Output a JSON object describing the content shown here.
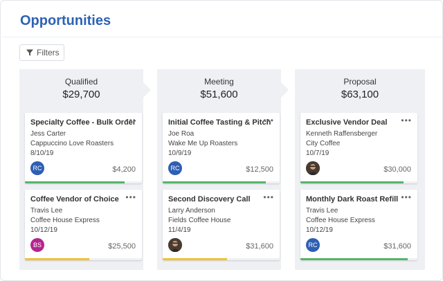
{
  "header": {
    "title": "Opportunities"
  },
  "toolbar": {
    "filters_label": "Filters"
  },
  "colors": {
    "accent": "#2d62b5",
    "green": "#55b46a",
    "yellow": "#f2c12e"
  },
  "columns": [
    {
      "name": "Qualified",
      "amount": "$29,700",
      "cards": [
        {
          "title": "Specialty Coffee - Bulk Order",
          "contact": "Jess Carter",
          "company": "Cappuccino Love Roasters",
          "date": "8/10/19",
          "value": "$4,200",
          "avatar_initials": "RC",
          "avatar_color": "#2f5fb3",
          "avatar_type": "initials",
          "progress": 0.85,
          "progress_color": "#55b46a"
        },
        {
          "title": "Coffee Vendor of Choice",
          "contact": "Travis Lee",
          "company": "Coffee House Express",
          "date": "10/12/19",
          "value": "$25,500",
          "avatar_initials": "BS",
          "avatar_color": "#b3268e",
          "avatar_type": "initials",
          "progress": 0.55,
          "progress_color": "#f2c12e"
        }
      ]
    },
    {
      "name": "Meeting",
      "amount": "$51,600",
      "cards": [
        {
          "title": "Initial Coffee Tasting & Pitch",
          "contact": "Joe Roa",
          "company": "Wake Me Up Roasters",
          "date": "10/9/19",
          "value": "$12,500",
          "avatar_initials": "RC",
          "avatar_color": "#2f5fb3",
          "avatar_type": "initials",
          "progress": 0.88,
          "progress_color": "#55b46a"
        },
        {
          "title": "Second Discovery Call",
          "contact": "Larry Anderson",
          "company": "Fields Coffee House",
          "date": "11/4/19",
          "value": "$31,600",
          "avatar_initials": "",
          "avatar_color": "#5a4a3e",
          "avatar_type": "photo",
          "progress": 0.55,
          "progress_color": "#f2c12e"
        }
      ]
    },
    {
      "name": "Proposal",
      "amount": "$63,100",
      "cards": [
        {
          "title": "Exclusive Vendor Deal",
          "contact": "Kenneth Raffensberger",
          "company": "City Coffee",
          "date": "10/7/19",
          "value": "$30,000",
          "avatar_initials": "",
          "avatar_color": "#5a4a3e",
          "avatar_type": "photo",
          "progress": 0.88,
          "progress_color": "#55b46a"
        },
        {
          "title": "Monthly Dark Roast Refill",
          "contact": "Travis Lee",
          "company": "Coffee House Express",
          "date": "10/12/19",
          "value": "$31,600",
          "avatar_initials": "RC",
          "avatar_color": "#2f5fb3",
          "avatar_type": "initials",
          "progress": 0.92,
          "progress_color": "#55b46a"
        }
      ]
    }
  ]
}
